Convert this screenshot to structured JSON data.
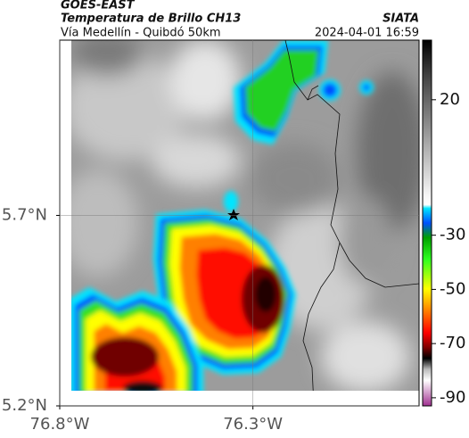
{
  "chart_data": {
    "type": "map",
    "title": "GOES-EAST",
    "subtitle": "Temperatura de Brillo CH13",
    "source": "SIATA",
    "region": "Vía Medellín - Quibdó 50km",
    "timestamp": "2024-04-01 16:59",
    "xlim": [
      -76.8,
      -75.87
    ],
    "xticks": [
      {
        "value": -76.8,
        "label": "76.8°W"
      },
      {
        "value": -76.3,
        "label": "76.3°W"
      }
    ],
    "ylim": [
      5.2,
      6.16
    ],
    "yticks": [
      {
        "value": 5.2,
        "label": "5.2°N"
      },
      {
        "value": 5.7,
        "label": "5.7°N"
      }
    ],
    "grid": true,
    "colorbar": {
      "lim": [
        -93,
        42
      ],
      "ticks": [
        20,
        -30,
        -50,
        -70,
        -90
      ]
    }
  }
}
